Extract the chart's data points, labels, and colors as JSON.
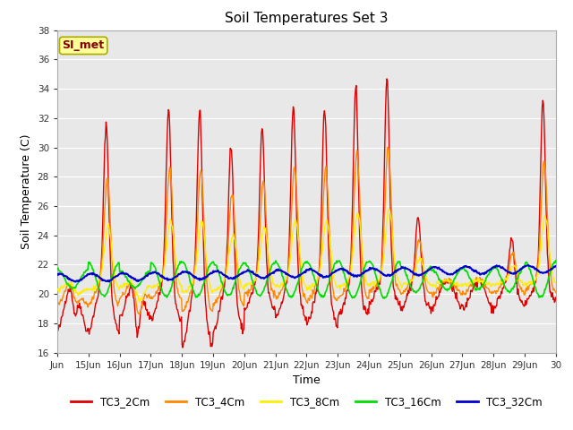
{
  "title": "Soil Temperatures Set 3",
  "xlabel": "Time",
  "ylabel": "Soil Temperature (C)",
  "ylim": [
    16,
    38
  ],
  "yticks": [
    16,
    18,
    20,
    22,
    24,
    26,
    28,
    30,
    32,
    34,
    36,
    38
  ],
  "x_labels": [
    "Jun",
    "15Jun",
    "16Jun",
    "17Jun",
    "18Jun",
    "19Jun",
    "20Jun",
    "21Jun",
    "22Jun",
    "23Jun",
    "24Jun",
    "25Jun",
    "26Jun",
    "27Jun",
    "28Jun",
    "29Jun",
    "30"
  ],
  "series": {
    "TC3_2Cm": {
      "color": "#dd0000",
      "lw": 1.0
    },
    "TC3_4Cm": {
      "color": "#ff8800",
      "lw": 1.0
    },
    "TC3_8Cm": {
      "color": "#ffee00",
      "lw": 1.0
    },
    "TC3_16Cm": {
      "color": "#00dd00",
      "lw": 1.2
    },
    "TC3_32Cm": {
      "color": "#0000cc",
      "lw": 1.5
    }
  },
  "annotation": {
    "text": "SI_met",
    "fontsize": 9,
    "color": "#880000",
    "bg": "#ffff99",
    "border": "#aaaa00"
  },
  "fig_bg": "#ffffff",
  "plot_bg": "#e8e8e8",
  "grid_color": "#ffffff",
  "figsize": [
    6.4,
    4.8
  ],
  "dpi": 100
}
